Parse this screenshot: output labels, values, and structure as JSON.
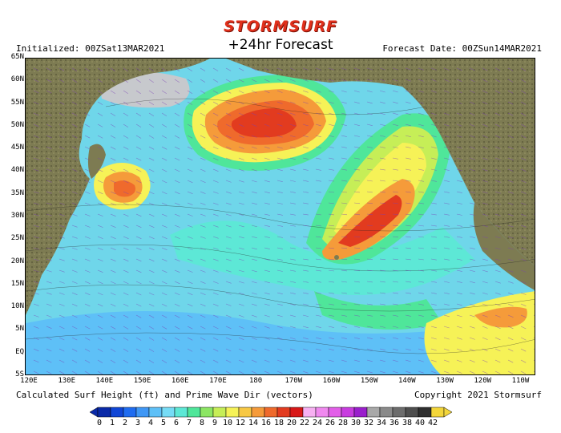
{
  "header": {
    "brand": "STORMSURF",
    "forecast": "+24hr Forecast",
    "initialized": "Initialized: 00ZSat13MAR2021",
    "forecast_date": "Forecast Date: 00ZSun14MAR2021"
  },
  "footer": {
    "caption": "Calculated Surf Height (ft) and Prime Wave Dir (vectors)",
    "copyright": "Copyright 2021 Stormsurf"
  },
  "lat_labels": [
    "65N",
    "60N",
    "55N",
    "50N",
    "45N",
    "40N",
    "35N",
    "30N",
    "25N",
    "20N",
    "15N",
    "10N",
    "5N",
    "EQ",
    "5S"
  ],
  "lon_labels": [
    "120E",
    "130E",
    "140E",
    "150E",
    "160E",
    "170E",
    "180",
    "170W",
    "160W",
    "150W",
    "140W",
    "130W",
    "120W",
    "110W"
  ],
  "scale": {
    "values": [
      "0",
      "1",
      "2",
      "3",
      "4",
      "5",
      "6",
      "7",
      "8",
      "9",
      "10",
      "12",
      "14",
      "16",
      "18",
      "20",
      "22",
      "24",
      "26",
      "28",
      "30",
      "32",
      "34",
      "36",
      "38",
      "40",
      "42"
    ],
    "colors": [
      "#0a2aa8",
      "#1046d6",
      "#1f6cf0",
      "#3f97f5",
      "#5ec0f7",
      "#76dcf6",
      "#5de8d6",
      "#4fe69a",
      "#8ce663",
      "#c6ee57",
      "#f6f257",
      "#f7c844",
      "#f59b3a",
      "#ef6a2c",
      "#e23b1f",
      "#d81818",
      "#f7b0f2",
      "#f089ef",
      "#e25ee8",
      "#c83cdf",
      "#9a1fcc",
      "#a8a8a8",
      "#8a8a8a",
      "#6c6c6c",
      "#4e4e4e",
      "#2f2f2f",
      "#f3d63a"
    ]
  },
  "colors": {
    "ocean_base": "#6fd6ea",
    "land": "#7d7b52",
    "ice": "#c7c9cd",
    "brand": "#e0301c"
  }
}
